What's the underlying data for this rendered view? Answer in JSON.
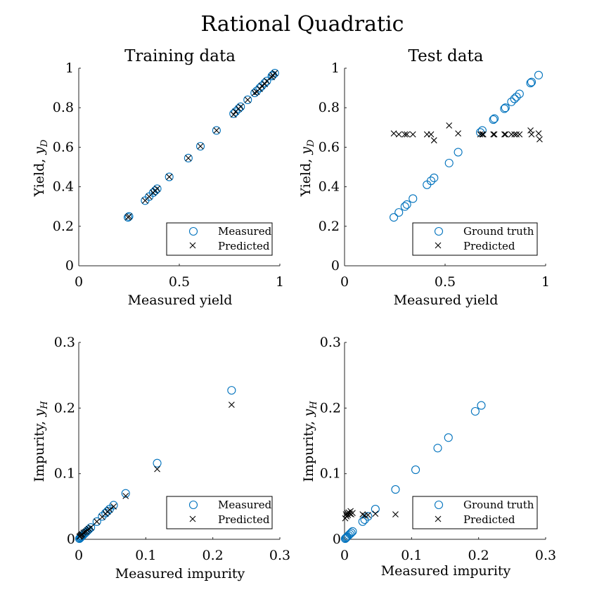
{
  "figure": {
    "title": "Rational Quadratic"
  },
  "colors": {
    "measured": "#0072BD",
    "predicted": "#000000"
  },
  "chart_data": [
    {
      "type": "scatter",
      "title": "Training data",
      "xlabel": "Measured yield",
      "ylabel": "Yield, y_D",
      "ylabel_main": "Yield, ",
      "ylabel_var": "y",
      "ylabel_sub": "D",
      "xlim": [
        0,
        1
      ],
      "ylim": [
        0,
        1
      ],
      "xticks": [
        0,
        0.5,
        1
      ],
      "yticks": [
        0,
        0.2,
        0.4,
        0.6,
        0.8,
        1
      ],
      "xtick_labels": [
        "0",
        "0.5",
        "1"
      ],
      "ytick_labels": [
        "0",
        "0.2",
        "0.4",
        "0.6",
        "0.8",
        "1"
      ],
      "legend": {
        "position": "bottom-right",
        "entries": [
          "Measured",
          "Predicted"
        ]
      },
      "series": [
        {
          "name": "Measured",
          "marker": "circle",
          "x": [
            0.245,
            0.25,
            0.33,
            0.35,
            0.37,
            0.38,
            0.39,
            0.45,
            0.545,
            0.605,
            0.685,
            0.77,
            0.78,
            0.795,
            0.805,
            0.84,
            0.875,
            0.885,
            0.9,
            0.91,
            0.925,
            0.935,
            0.96,
            0.965,
            0.975
          ],
          "y": [
            0.245,
            0.25,
            0.33,
            0.35,
            0.37,
            0.38,
            0.39,
            0.45,
            0.545,
            0.605,
            0.685,
            0.77,
            0.78,
            0.795,
            0.805,
            0.84,
            0.875,
            0.885,
            0.9,
            0.91,
            0.925,
            0.935,
            0.96,
            0.965,
            0.975
          ]
        },
        {
          "name": "Predicted",
          "marker": "x",
          "x": [
            0.245,
            0.25,
            0.33,
            0.35,
            0.37,
            0.38,
            0.39,
            0.45,
            0.545,
            0.605,
            0.685,
            0.77,
            0.78,
            0.795,
            0.805,
            0.84,
            0.875,
            0.885,
            0.9,
            0.91,
            0.925,
            0.935,
            0.96,
            0.965,
            0.975
          ],
          "y": [
            0.245,
            0.25,
            0.33,
            0.35,
            0.37,
            0.38,
            0.39,
            0.45,
            0.545,
            0.605,
            0.685,
            0.765,
            0.78,
            0.795,
            0.805,
            0.84,
            0.875,
            0.88,
            0.895,
            0.91,
            0.92,
            0.935,
            0.955,
            0.965,
            0.975
          ]
        }
      ]
    },
    {
      "type": "scatter",
      "title": "Test data",
      "xlabel": "Measured yield",
      "ylabel": "Yield, y_D",
      "ylabel_main": "Yield, ",
      "ylabel_var": "y",
      "ylabel_sub": "D",
      "xlim": [
        0,
        1
      ],
      "ylim": [
        0,
        1
      ],
      "xticks": [
        0,
        0.5,
        1
      ],
      "yticks": [
        0,
        0.2,
        0.4,
        0.6,
        0.8,
        1
      ],
      "xtick_labels": [
        "0",
        "0.5",
        "1"
      ],
      "ytick_labels": [
        "0",
        "0.2",
        "0.4",
        "0.6",
        "0.8",
        "1"
      ],
      "legend": {
        "position": "bottom-right",
        "entries": [
          "Ground truth",
          "Predicted"
        ]
      },
      "series": [
        {
          "name": "Ground truth",
          "marker": "circle",
          "x": [
            0.245,
            0.27,
            0.3,
            0.31,
            0.34,
            0.41,
            0.43,
            0.445,
            0.52,
            0.565,
            0.675,
            0.685,
            0.74,
            0.745,
            0.795,
            0.8,
            0.83,
            0.845,
            0.855,
            0.87,
            0.925,
            0.93,
            0.965
          ],
          "y": [
            0.245,
            0.27,
            0.3,
            0.31,
            0.34,
            0.41,
            0.43,
            0.445,
            0.52,
            0.575,
            0.675,
            0.685,
            0.74,
            0.745,
            0.795,
            0.8,
            0.83,
            0.845,
            0.855,
            0.87,
            0.925,
            0.93,
            0.965
          ]
        },
        {
          "name": "Predicted",
          "marker": "x",
          "x": [
            0.245,
            0.27,
            0.3,
            0.31,
            0.34,
            0.41,
            0.43,
            0.445,
            0.52,
            0.565,
            0.675,
            0.685,
            0.69,
            0.74,
            0.745,
            0.795,
            0.8,
            0.83,
            0.845,
            0.855,
            0.87,
            0.925,
            0.93,
            0.965,
            0.97
          ],
          "y": [
            0.67,
            0.665,
            0.665,
            0.665,
            0.665,
            0.665,
            0.665,
            0.635,
            0.71,
            0.67,
            0.665,
            0.665,
            0.665,
            0.665,
            0.665,
            0.665,
            0.665,
            0.665,
            0.665,
            0.665,
            0.665,
            0.685,
            0.665,
            0.67,
            0.64
          ]
        }
      ]
    },
    {
      "type": "scatter",
      "title": "",
      "xlabel": "Measured impurity",
      "ylabel": "Impurity, y_H",
      "ylabel_main": "Impurity, ",
      "ylabel_var": "y",
      "ylabel_sub": "H",
      "xlim": [
        0,
        0.3
      ],
      "ylim": [
        0,
        0.3
      ],
      "xticks": [
        0,
        0.1,
        0.2,
        0.3
      ],
      "yticks": [
        0,
        0.1,
        0.2,
        0.3
      ],
      "xtick_labels": [
        "0",
        "0.1",
        "0.2",
        "0.3"
      ],
      "ytick_labels": [
        "0",
        "0.1",
        "0.2",
        "0.3"
      ],
      "legend": {
        "position": "bottom-right",
        "entries": [
          "Measured",
          "Predicted"
        ]
      },
      "series": [
        {
          "name": "Measured",
          "marker": "circle",
          "x": [
            0.001,
            0.002,
            0.003,
            0.004,
            0.005,
            0.007,
            0.009,
            0.011,
            0.013,
            0.015,
            0.018,
            0.027,
            0.035,
            0.04,
            0.043,
            0.046,
            0.052,
            0.07,
            0.117,
            0.228
          ],
          "y": [
            0.001,
            0.002,
            0.003,
            0.004,
            0.005,
            0.007,
            0.009,
            0.011,
            0.013,
            0.015,
            0.018,
            0.027,
            0.035,
            0.04,
            0.043,
            0.046,
            0.052,
            0.07,
            0.116,
            0.227
          ]
        },
        {
          "name": "Predicted",
          "marker": "x",
          "x": [
            0.001,
            0.002,
            0.003,
            0.004,
            0.005,
            0.007,
            0.009,
            0.011,
            0.013,
            0.015,
            0.018,
            0.027,
            0.035,
            0.04,
            0.043,
            0.046,
            0.052,
            0.07,
            0.117,
            0.228
          ],
          "y": [
            0.004,
            0.005,
            0.006,
            0.007,
            0.008,
            0.01,
            0.011,
            0.012,
            0.014,
            0.016,
            0.018,
            0.027,
            0.034,
            0.039,
            0.042,
            0.045,
            0.05,
            0.066,
            0.107,
            0.205
          ]
        }
      ]
    },
    {
      "type": "scatter",
      "title": "",
      "xlabel": "Measured impurity",
      "ylabel": "Impurity, y_H",
      "ylabel_main": "Impurity, ",
      "ylabel_var": "y",
      "ylabel_sub": "H",
      "xlim": [
        0,
        0.3
      ],
      "ylim": [
        0,
        0.3
      ],
      "xticks": [
        0,
        0.1,
        0.2,
        0.3
      ],
      "yticks": [
        0,
        0.1,
        0.2,
        0.3
      ],
      "xtick_labels": [
        "0",
        "0.1",
        "0.2",
        "0.3"
      ],
      "ytick_labels": [
        "0",
        "0.1",
        "0.2",
        "0.3"
      ],
      "legend": {
        "position": "bottom-right",
        "entries": [
          "Ground truth",
          "Predicted"
        ]
      },
      "series": [
        {
          "name": "Ground truth",
          "marker": "circle",
          "x": [
            0.001,
            0.002,
            0.003,
            0.004,
            0.006,
            0.008,
            0.01,
            0.012,
            0.027,
            0.03,
            0.035,
            0.046,
            0.076,
            0.106,
            0.139,
            0.155,
            0.195,
            0.204
          ],
          "y": [
            0.001,
            0.002,
            0.003,
            0.004,
            0.006,
            0.008,
            0.01,
            0.012,
            0.027,
            0.03,
            0.035,
            0.046,
            0.076,
            0.106,
            0.139,
            0.155,
            0.195,
            0.204
          ]
        },
        {
          "name": "Predicted",
          "marker": "x",
          "x": [
            0.001,
            0.002,
            0.003,
            0.004,
            0.005,
            0.006,
            0.008,
            0.009,
            0.01,
            0.012,
            0.027,
            0.03,
            0.035,
            0.046,
            0.076
          ],
          "y": [
            0.032,
            0.038,
            0.035,
            0.04,
            0.037,
            0.041,
            0.039,
            0.043,
            0.038,
            0.04,
            0.038,
            0.036,
            0.037,
            0.039,
            0.038
          ]
        }
      ]
    }
  ]
}
